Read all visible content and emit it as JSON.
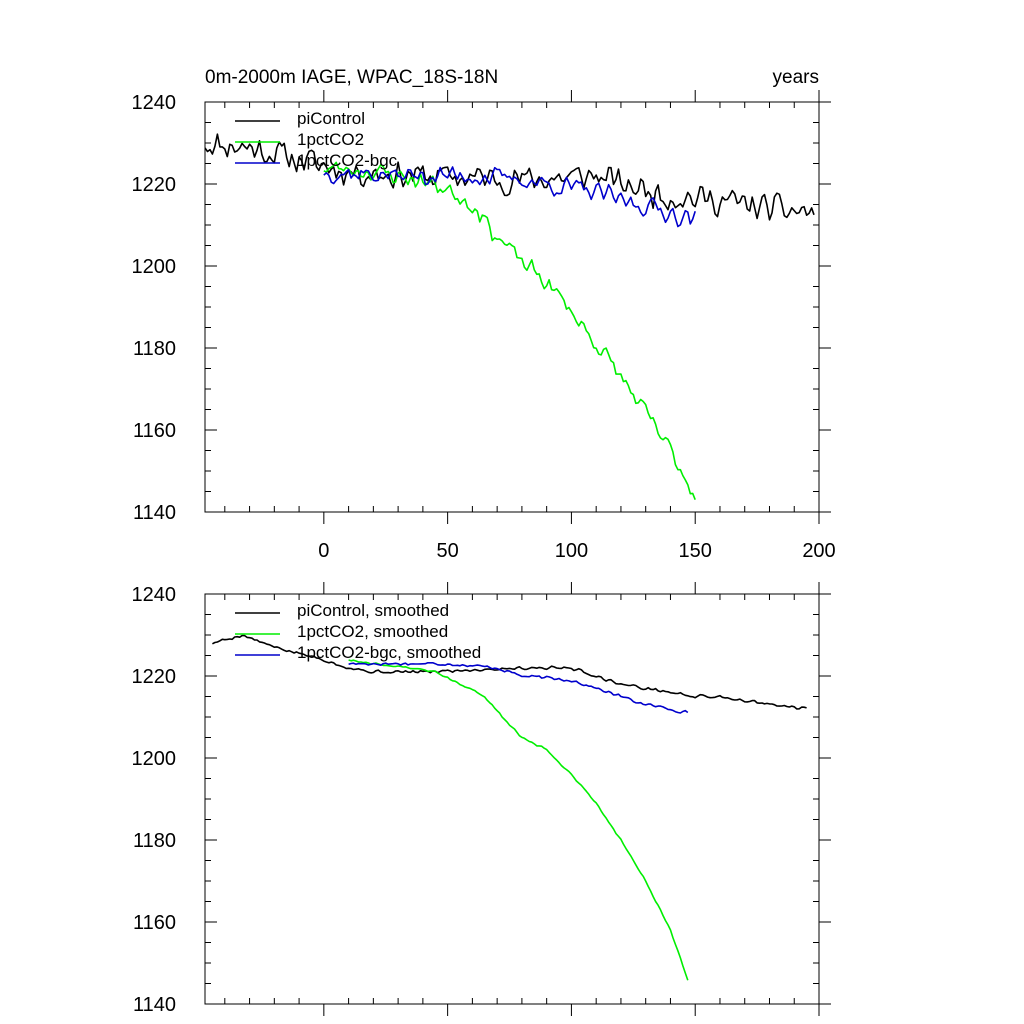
{
  "chart_data": [
    {
      "type": "line",
      "title": "0m-2000m IAGE, WPAC_18S-18N",
      "title_right": "years",
      "xlim": [
        -48,
        200
      ],
      "ylim": [
        1140,
        1240
      ],
      "xticks": [
        0,
        50,
        100,
        150,
        200
      ],
      "yticks": [
        1140,
        1160,
        1180,
        1200,
        1220,
        1240
      ],
      "show_xtick_labels": true,
      "legend_position": "top-left",
      "series": [
        {
          "name": "piControl",
          "color": "#000000",
          "x_start": -48,
          "x_end": 198,
          "anchors": [
            [
              -48,
              1230
            ],
            [
              -30,
              1229
            ],
            [
              -10,
              1226
            ],
            [
              10,
              1223
            ],
            [
              40,
              1222
            ],
            [
              80,
              1221
            ],
            [
              110,
              1222
            ],
            [
              120,
              1220
            ],
            [
              140,
              1217
            ],
            [
              160,
              1216
            ],
            [
              180,
              1214
            ],
            [
              198,
              1213
            ]
          ],
          "noise": 4.2,
          "seed": 11
        },
        {
          "name": "1pctCO2",
          "color": "#00ee00",
          "x_start": 0,
          "x_end": 150,
          "anchors": [
            [
              0,
              1224
            ],
            [
              20,
              1223
            ],
            [
              30,
              1222
            ],
            [
              45,
              1220
            ],
            [
              55,
              1217
            ],
            [
              62,
              1214
            ],
            [
              70,
              1207
            ],
            [
              80,
              1201
            ],
            [
              90,
              1196
            ],
            [
              100,
              1189
            ],
            [
              110,
              1181
            ],
            [
              120,
              1173
            ],
            [
              130,
              1164
            ],
            [
              140,
              1155
            ],
            [
              150,
              1144
            ]
          ],
          "noise": 2.8,
          "seed": 23
        },
        {
          "name": "1pctCO2-bgc",
          "color": "#0000cc",
          "x_start": 0,
          "x_end": 150,
          "anchors": [
            [
              0,
              1223
            ],
            [
              30,
              1222
            ],
            [
              60,
              1222
            ],
            [
              80,
              1221
            ],
            [
              100,
              1219
            ],
            [
              110,
              1218
            ],
            [
              120,
              1216
            ],
            [
              135,
              1214
            ],
            [
              150,
              1211
            ]
          ],
          "noise": 3.0,
          "seed": 37
        }
      ]
    },
    {
      "type": "line",
      "title": "",
      "title_right": "",
      "xlim": [
        -48,
        200
      ],
      "ylim": [
        1140,
        1240
      ],
      "xticks": [
        0,
        50,
        100,
        150,
        200
      ],
      "yticks": [
        1140,
        1160,
        1180,
        1200,
        1220,
        1240
      ],
      "show_xtick_labels": false,
      "legend_position": "top-left",
      "series": [
        {
          "name": "piControl, smoothed",
          "color": "#000000",
          "x_start": -45,
          "x_end": 195,
          "anchors": [
            [
              -45,
              1228
            ],
            [
              -33,
              1230
            ],
            [
              -20,
              1227
            ],
            [
              0,
              1224
            ],
            [
              10,
              1222
            ],
            [
              20,
              1221
            ],
            [
              40,
              1221
            ],
            [
              60,
              1221.5
            ],
            [
              80,
              1222
            ],
            [
              100,
              1222
            ],
            [
              110,
              1220
            ],
            [
              120,
              1218
            ],
            [
              130,
              1217
            ],
            [
              140,
              1216
            ],
            [
              150,
              1215
            ],
            [
              160,
              1215
            ],
            [
              170,
              1214
            ],
            [
              180,
              1213
            ],
            [
              195,
              1212
            ]
          ],
          "noise": 0.5,
          "seed": 5
        },
        {
          "name": "1pctCO2, smoothed",
          "color": "#00ee00",
          "x_start": 10,
          "x_end": 147,
          "anchors": [
            [
              10,
              1224
            ],
            [
              20,
              1223
            ],
            [
              35,
              1222
            ],
            [
              45,
              1221
            ],
            [
              55,
              1218
            ],
            [
              65,
              1215
            ],
            [
              72,
              1210
            ],
            [
              80,
              1205
            ],
            [
              90,
              1202
            ],
            [
              100,
              1196
            ],
            [
              110,
              1189
            ],
            [
              120,
              1180
            ],
            [
              130,
              1170
            ],
            [
              140,
              1158
            ],
            [
              147,
              1146
            ]
          ],
          "noise": 0.3,
          "seed": 9
        },
        {
          "name": "1pctCO2-bgc, smoothed",
          "color": "#0000cc",
          "x_start": 10,
          "x_end": 147,
          "anchors": [
            [
              10,
              1223
            ],
            [
              30,
              1223
            ],
            [
              50,
              1223
            ],
            [
              70,
              1222
            ],
            [
              80,
              1220
            ],
            [
              100,
              1219
            ],
            [
              110,
              1217
            ],
            [
              120,
              1215
            ],
            [
              130,
              1213
            ],
            [
              140,
              1212
            ],
            [
              147,
              1211
            ]
          ],
          "noise": 0.5,
          "seed": 17
        }
      ]
    }
  ]
}
